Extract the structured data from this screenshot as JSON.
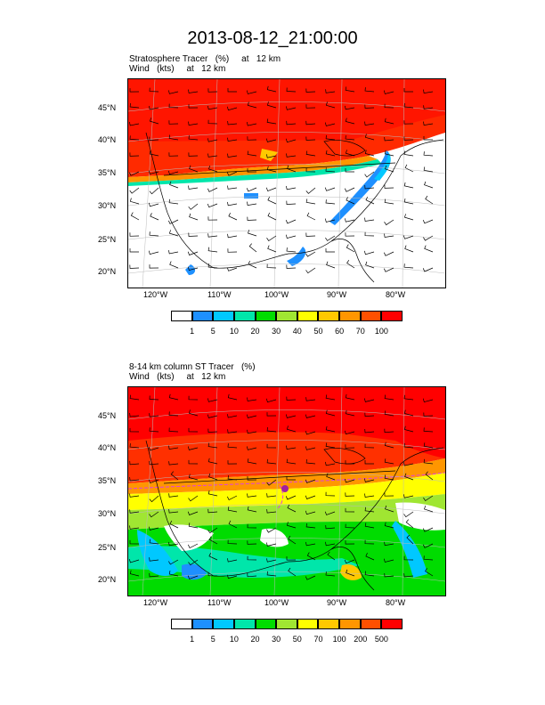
{
  "title": "2013-08-12_21:00:00",
  "panel1": {
    "subtitle_line1": "Stratosphere Tracer   (%)     at   12 km",
    "subtitle_line2": "Wind   (kts)     at   12 km",
    "lat_labels": [
      "45°N",
      "40°N",
      "35°N",
      "30°N",
      "25°N",
      "20°N"
    ],
    "lon_labels": [
      "120°W",
      "110°W",
      "100°W",
      "90°W",
      "80°W"
    ],
    "colorbar_labels": [
      "1",
      "5",
      "10",
      "20",
      "30",
      "40",
      "50",
      "60",
      "70",
      "100"
    ]
  },
  "panel2": {
    "subtitle_line1": "8-14 km column ST Tracer   (%)",
    "subtitle_line2": "Wind   (kts)     at   12 km",
    "lat_labels": [
      "45°N",
      "40°N",
      "35°N",
      "30°N",
      "25°N",
      "20°N"
    ],
    "lon_labels": [
      "120°W",
      "110°W",
      "100°W",
      "90°W",
      "80°W"
    ],
    "colorbar_labels": [
      "1",
      "5",
      "10",
      "20",
      "30",
      "50",
      "70",
      "100",
      "200",
      "500"
    ]
  },
  "colorbar_colors": [
    "#ffffff",
    "#1e90ff",
    "#00c8ff",
    "#00e6aa",
    "#00dc00",
    "#a0e632",
    "#ffff00",
    "#ffc800",
    "#ff9600",
    "#ff5000",
    "#ff0000"
  ]
}
